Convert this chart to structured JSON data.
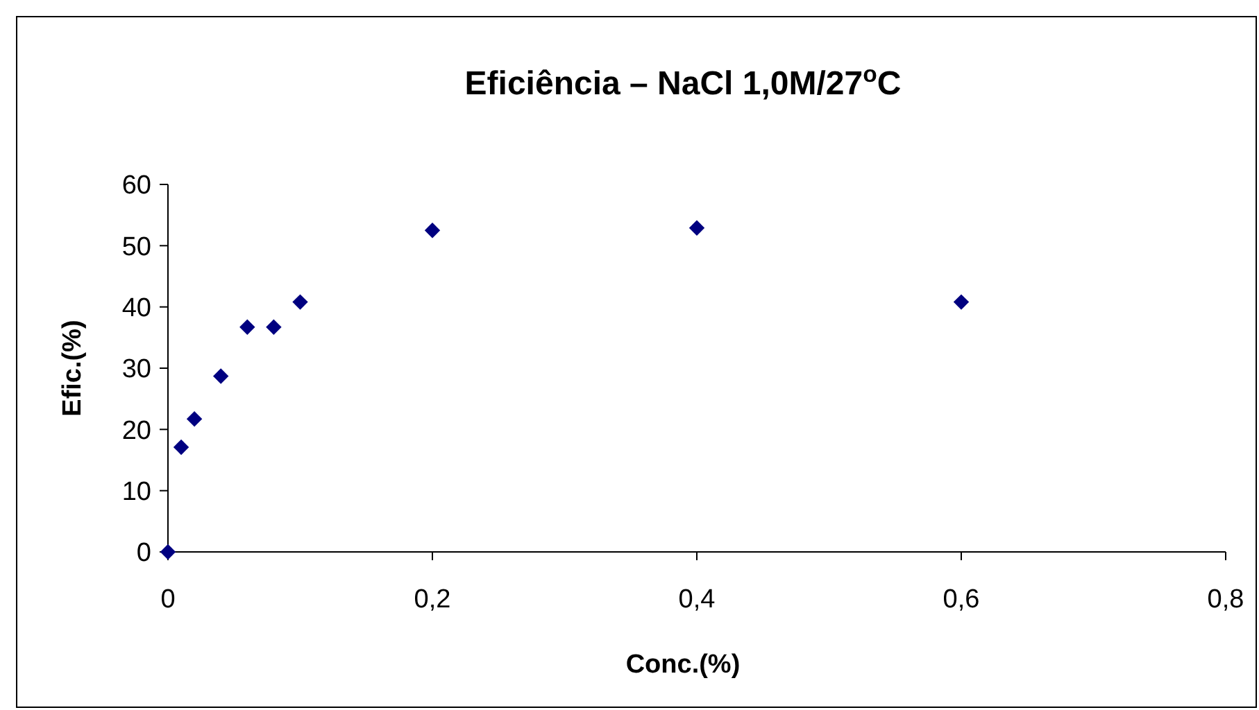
{
  "chart_data": {
    "type": "scatter",
    "title": "Eficiência – NaCl  1,0M/27$^{o}$C",
    "xlabel": "Conc.(%)",
    "ylabel": "Efic.(%)",
    "x": [
      0,
      0.01,
      0.02,
      0.04,
      0.06,
      0.08,
      0.1,
      0.2,
      0.4,
      0.6
    ],
    "series": [
      {
        "color": "#000080",
        "values": [
          0,
          17.1,
          21.7,
          28.7,
          36.7,
          36.7,
          40.8,
          52.5,
          52.9,
          40.8
        ]
      }
    ],
    "xlim": [
      0,
      0.8
    ],
    "xticks": [
      0,
      {
        "value": 0.2,
        "label": "0,2"
      },
      {
        "value": 0.4,
        "label": "0,4"
      },
      {
        "value": 0.6,
        "label": "0,6"
      },
      {
        "value": 0.8,
        "label": "0,8"
      }
    ],
    "ylim": [
      0,
      60
    ],
    "yticks": [
      0,
      10,
      20,
      30,
      40,
      50,
      60
    ],
    "marker": "diamond",
    "grid": false
  }
}
